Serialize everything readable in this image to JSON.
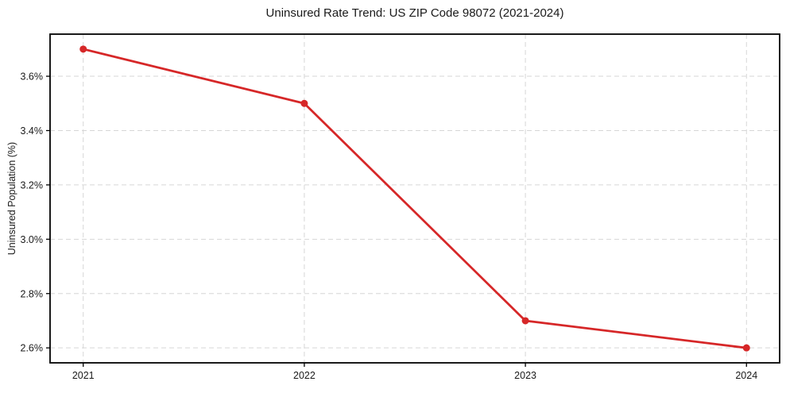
{
  "chart_data": {
    "type": "line",
    "title": "Uninsured Rate Trend: US ZIP Code 98072 (2021-2024)",
    "xlabel": "",
    "ylabel": "Uninsured Population (%)",
    "x": [
      2021,
      2022,
      2023,
      2024
    ],
    "series": [
      {
        "name": "uninsured-rate",
        "values": [
          3.7,
          3.5,
          2.7,
          2.6
        ]
      }
    ],
    "x_tick_labels": [
      "2021",
      "2022",
      "2023",
      "2024"
    ],
    "y_tick_values": [
      2.6,
      2.8,
      3.0,
      3.2,
      3.4,
      3.6
    ],
    "y_tick_labels": [
      "2.6%",
      "2.8%",
      "3.0%",
      "3.2%",
      "3.4%",
      "3.6%"
    ],
    "xlim": [
      2020.85,
      2024.15
    ],
    "ylim": [
      2.545,
      3.755
    ],
    "grid": true,
    "grid_style": "dashed",
    "legend": false,
    "line_color": "#d62728",
    "marker": "circle",
    "grid_color": "#d6d6d6",
    "spine_color": "#000000",
    "text_color": "#1a1a1a",
    "background": "#ffffff"
  }
}
